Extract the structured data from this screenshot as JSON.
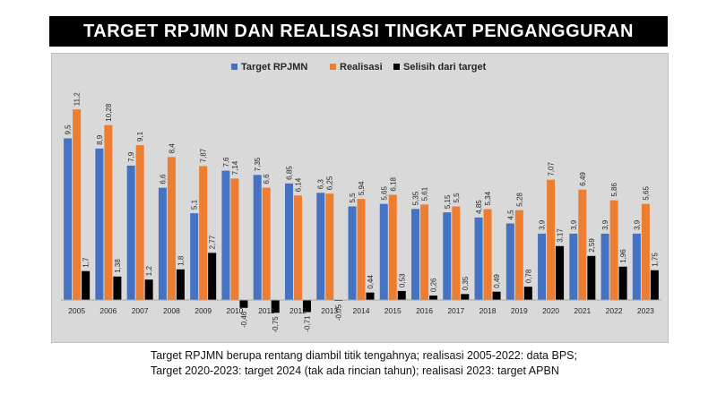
{
  "colors": {
    "target": "#4472c4",
    "realisasi": "#ed7d31",
    "selisih": "#000000",
    "background": "#d9d9d9",
    "title_bg": "#000000"
  },
  "footnote": {
    "line1": "Target RPJMN berupa rentang diambil titik tengahnya; realisasi 2005-2022: data BPS;",
    "line2": "Target 2020-2023: target 2024  (tak ada rincian tahun); realisasi 2023: target APBN"
  },
  "chart_data": {
    "type": "bar",
    "title": "TARGET RPJMN DAN REALISASI TINGKAT PENGANGGURAN",
    "categories": [
      "2005",
      "2006",
      "2007",
      "2008",
      "2009",
      "2010",
      "2011",
      "2012",
      "2013",
      "2014",
      "2015",
      "2016",
      "2017",
      "2018",
      "2019",
      "2020",
      "2021",
      "2022",
      "2023"
    ],
    "series": [
      {
        "name": "Target RPJMN",
        "color": "#4472c4",
        "values": [
          9.5,
          8.9,
          7.9,
          6.6,
          5.1,
          7.6,
          7.35,
          6.85,
          6.3,
          5.5,
          5.65,
          5.35,
          5.15,
          4.85,
          4.5,
          3.9,
          3.9,
          3.9,
          3.9
        ],
        "labels": [
          "9,5",
          "8,9",
          "7,9",
          "6,6",
          "5,1",
          "7,6",
          "7,35",
          "6,85",
          "6,3",
          "5,5",
          "5,65",
          "5,35",
          "5,15",
          "4,85",
          "4,5",
          "3,9",
          "3,9",
          "3,9",
          "3,9"
        ]
      },
      {
        "name": "Realisasi",
        "color": "#ed7d31",
        "values": [
          11.2,
          10.28,
          9.1,
          8.4,
          7.87,
          7.14,
          6.6,
          6.14,
          6.25,
          5.94,
          6.18,
          5.61,
          5.5,
          5.34,
          5.28,
          7.07,
          6.49,
          5.86,
          5.65
        ],
        "labels": [
          "11,2",
          "10,28",
          "9,1",
          "8,4",
          "7,87",
          "7,14",
          "6,6",
          "6,14",
          "6,25",
          "5,94",
          "6,18",
          "5,61",
          "5,5",
          "5,34",
          "5,28",
          "7,07",
          "6,49",
          "5,86",
          "5,65"
        ]
      },
      {
        "name": "Selisih dari target",
        "color": "#000000",
        "values": [
          1.7,
          1.38,
          1.2,
          1.8,
          2.77,
          -0.46,
          -0.75,
          -0.71,
          -0.05,
          0.44,
          0.53,
          0.26,
          0.35,
          0.49,
          0.78,
          3.17,
          2.59,
          1.96,
          1.75
        ],
        "labels": [
          "1,7",
          "1,38",
          "1,2",
          "1,8",
          "2,77",
          "-0,46",
          "-0,75",
          "-0,71",
          "-0,05",
          "0,44",
          "0,53",
          "0,26",
          "0,35",
          "0,49",
          "0,78",
          "3,17",
          "2,59",
          "1,96",
          "1,75"
        ]
      }
    ],
    "ylim": [
      -2,
      12
    ],
    "grid": false,
    "legend_position": "top"
  }
}
